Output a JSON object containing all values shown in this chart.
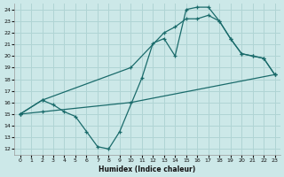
{
  "xlabel": "Humidex (Indice chaleur)",
  "xlim": [
    -0.5,
    23.5
  ],
  "ylim": [
    11.5,
    24.5
  ],
  "xticks": [
    0,
    1,
    2,
    3,
    4,
    5,
    6,
    7,
    8,
    9,
    10,
    11,
    12,
    13,
    14,
    15,
    16,
    17,
    18,
    19,
    20,
    21,
    22,
    23
  ],
  "yticks": [
    12,
    13,
    14,
    15,
    16,
    17,
    18,
    19,
    20,
    21,
    22,
    23,
    24
  ],
  "background_color": "#cce8e8",
  "grid_color": "#b0d4d4",
  "line_color": "#1a6b6b",
  "series": [
    {
      "x": [
        0,
        2,
        3,
        4,
        5,
        6,
        7,
        8,
        9,
        11,
        12,
        13,
        14,
        15,
        16,
        17,
        18,
        19,
        20,
        21,
        22,
        23
      ],
      "y": [
        15,
        16.2,
        15.8,
        15.2,
        14.8,
        13.5,
        12.2,
        12.0,
        13.5,
        18.1,
        21.1,
        21.5,
        20.0,
        24.0,
        24.2,
        24.2,
        23.0,
        21.5,
        20.2,
        20.0,
        19.8,
        18.4
      ]
    },
    {
      "x": [
        0,
        2,
        10,
        13,
        14,
        15,
        16,
        17,
        18,
        19,
        20,
        21,
        22,
        23
      ],
      "y": [
        15,
        16.2,
        19.0,
        22.0,
        22.5,
        23.2,
        23.2,
        23.5,
        23.0,
        21.5,
        20.2,
        20.0,
        19.8,
        18.4
      ]
    },
    {
      "x": [
        0,
        2,
        10,
        23
      ],
      "y": [
        15,
        15.2,
        16.0,
        18.4
      ]
    }
  ]
}
